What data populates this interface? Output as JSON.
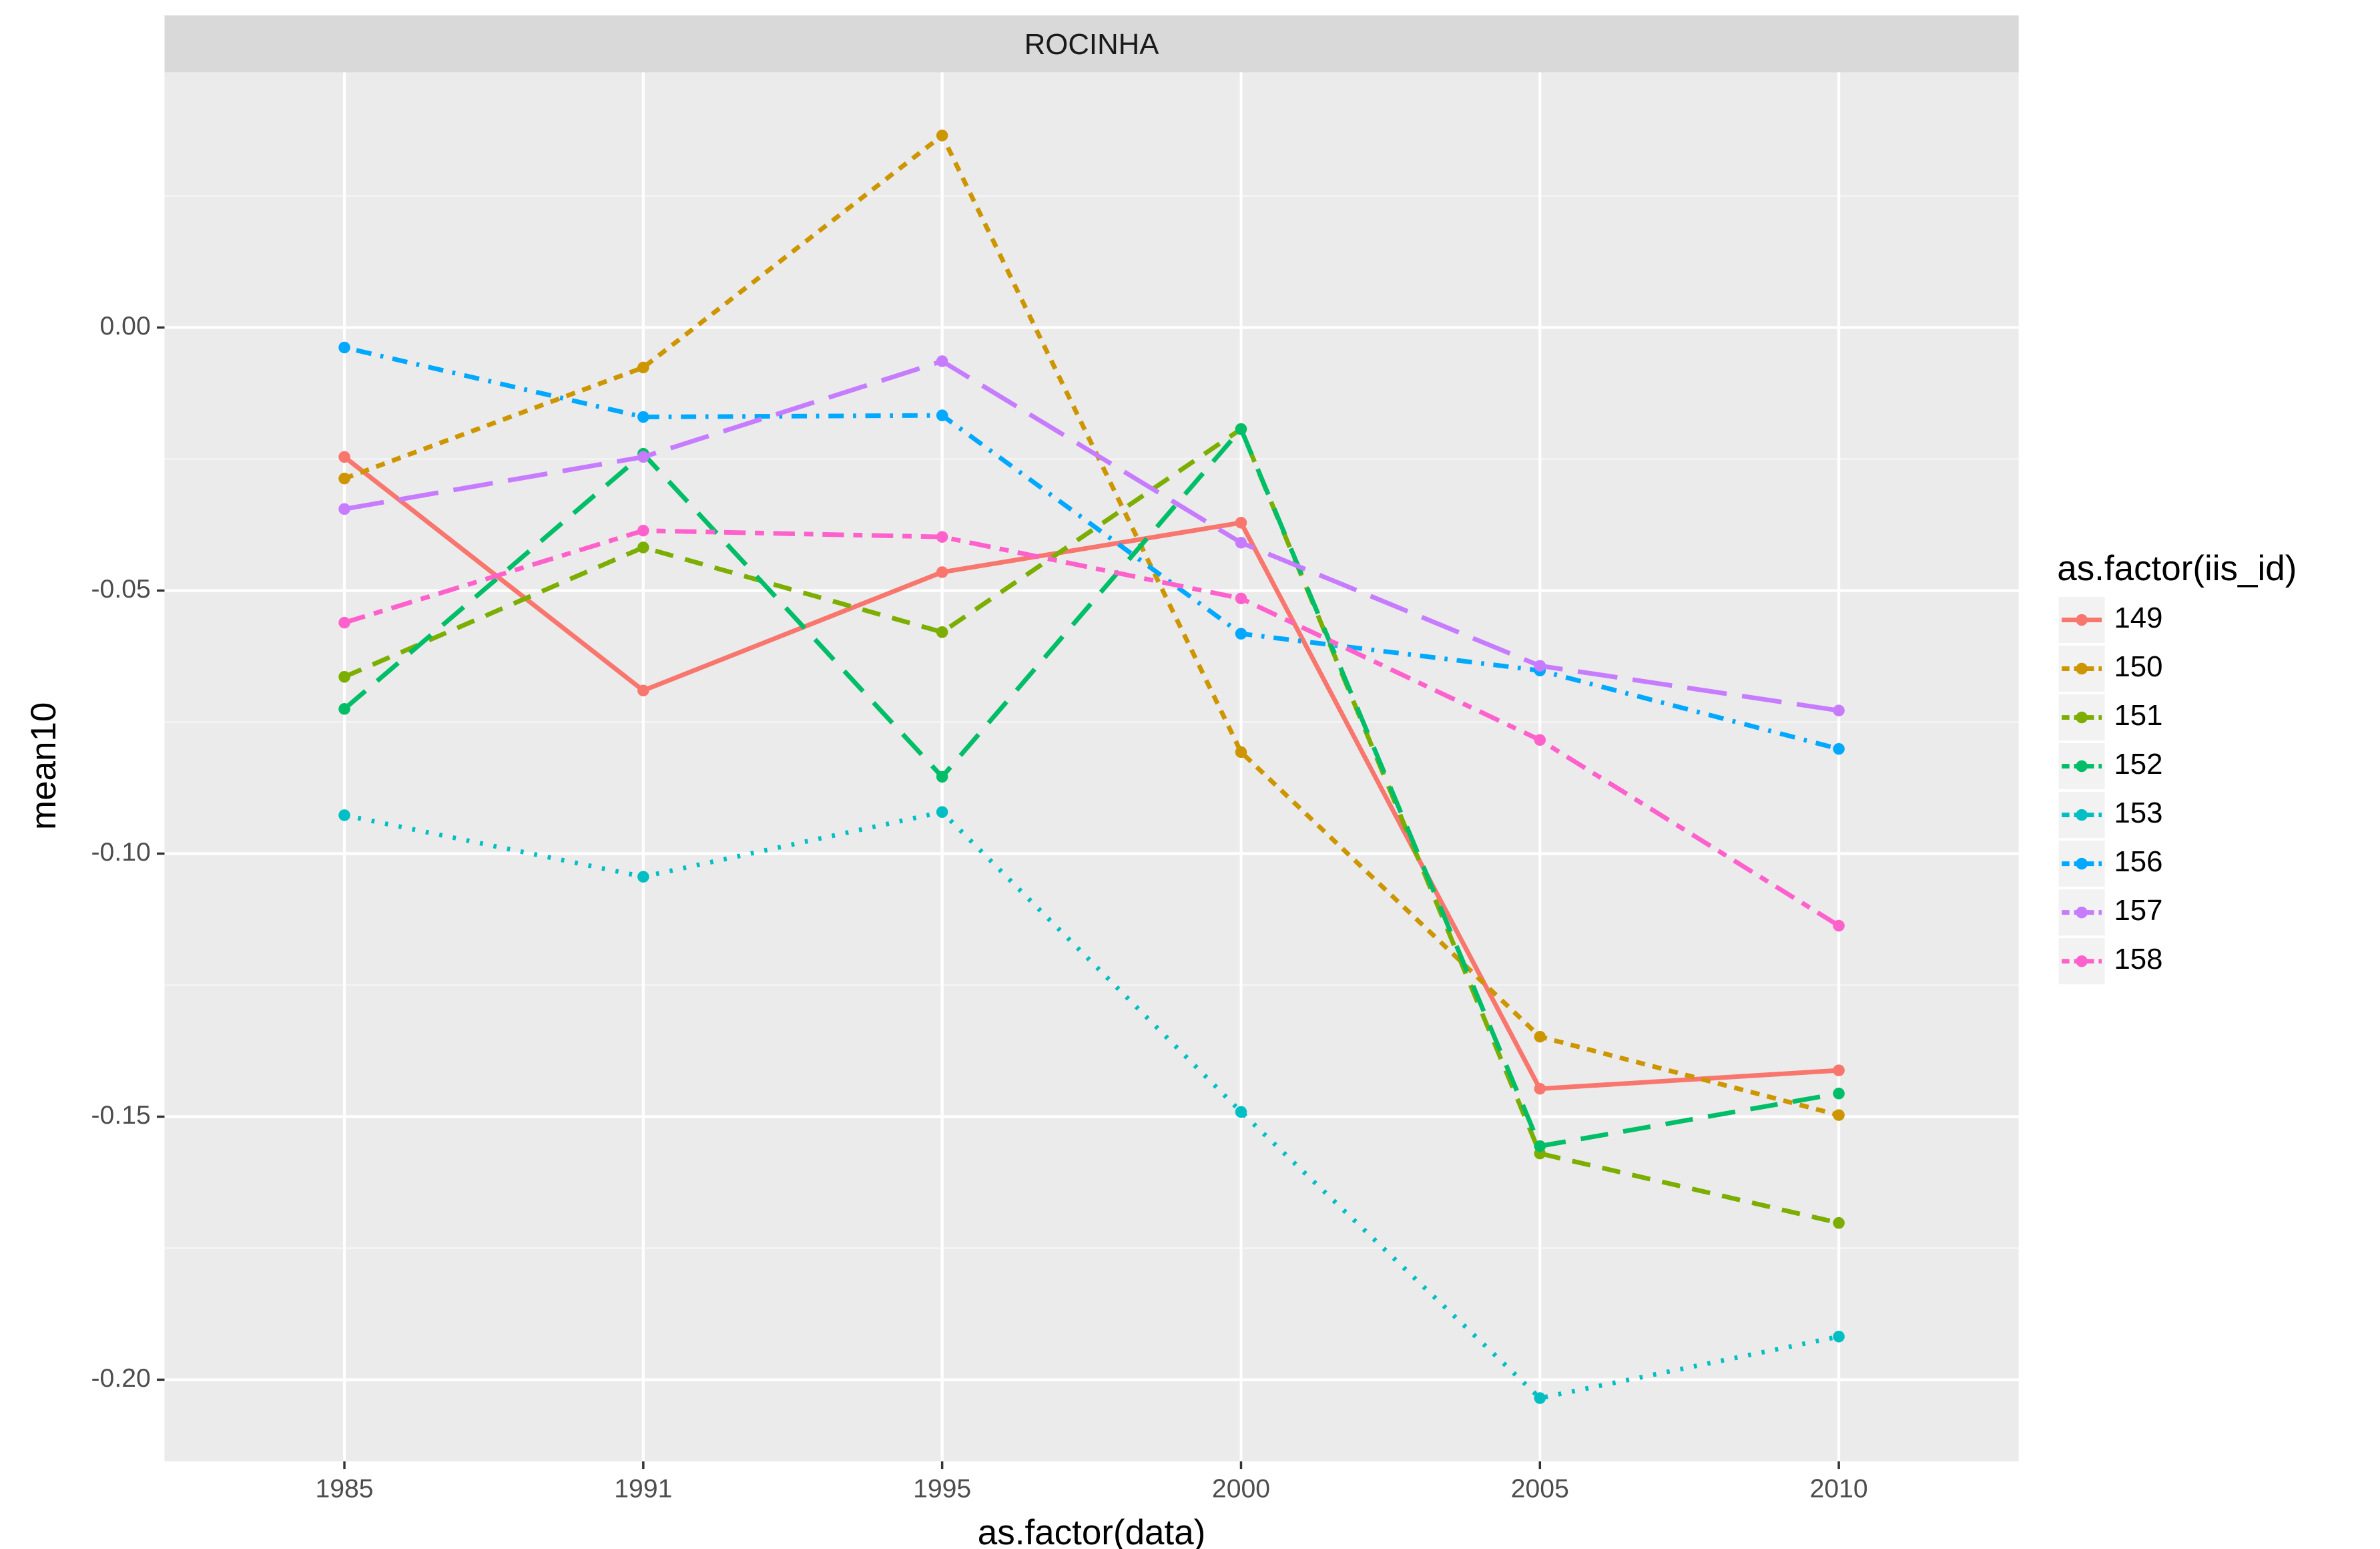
{
  "chart_data": {
    "type": "line",
    "strip_title": "ROCINHA",
    "x_label": "as.factor(data)",
    "y_label": "mean10",
    "legend_title": "as.factor(iis_id)",
    "legend_position": "right",
    "grid": true,
    "categories": [
      "1985",
      "1991",
      "1995",
      "2000",
      "2005",
      "2010"
    ],
    "ylim": [
      -0.2155,
      0.0485
    ],
    "yticks": [
      {
        "value": -0.2,
        "label": "-0.20"
      },
      {
        "value": -0.15,
        "label": "-0.15"
      },
      {
        "value": -0.1,
        "label": "-0.10"
      },
      {
        "value": -0.05,
        "label": "-0.05"
      },
      {
        "value": 0,
        "label": "0.00"
      }
    ],
    "series": [
      {
        "name": "149",
        "color": "#F8766D",
        "dash": "solid",
        "values": [
          -0.0246,
          -0.069,
          -0.0465,
          -0.0371,
          -0.1447,
          -0.1412
        ]
      },
      {
        "name": "150",
        "color": "#CD9600",
        "dash": "short",
        "values": [
          -0.0287,
          -0.0076,
          0.0365,
          -0.0807,
          -0.1348,
          -0.1497
        ]
      },
      {
        "name": "151",
        "color": "#7CAE00",
        "dash": "dashed",
        "values": [
          -0.0664,
          -0.0418,
          -0.0579,
          -0.0193,
          -0.157,
          -0.1702
        ]
      },
      {
        "name": "152",
        "color": "#00BE67",
        "dash": "longdash",
        "values": [
          -0.0725,
          -0.024,
          -0.0854,
          -0.0193,
          -0.1556,
          -0.1456
        ]
      },
      {
        "name": "153",
        "color": "#00BFC4",
        "dash": "dotted",
        "values": [
          -0.0927,
          -0.1044,
          -0.0921,
          -0.1491,
          -0.2035,
          -0.1918
        ]
      },
      {
        "name": "156",
        "color": "#00A9FF",
        "dash": "dotdash",
        "values": [
          -0.0038,
          -0.017,
          -0.0167,
          -0.0582,
          -0.0652,
          -0.0801
        ]
      },
      {
        "name": "157",
        "color": "#C77CFF",
        "dash": "longdash2",
        "values": [
          -0.0345,
          -0.0246,
          -0.0064,
          -0.0409,
          -0.0643,
          -0.0728
        ]
      },
      {
        "name": "158",
        "color": "#FF61CC",
        "dash": "twodash",
        "values": [
          -0.0561,
          -0.0386,
          -0.0398,
          -0.0515,
          -0.0784,
          -0.1137
        ]
      }
    ]
  }
}
